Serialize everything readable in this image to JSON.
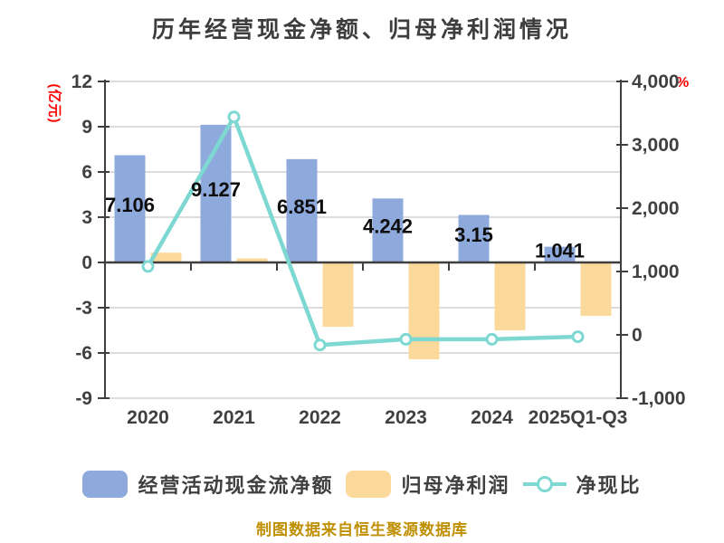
{
  "title": "历年经营现金净额、归母净利润情况",
  "footer": {
    "text": "制图数据来自恒生聚源数据库"
  },
  "legend": {
    "items": [
      {
        "label": "经营活动现金流净额",
        "type": "bar",
        "color": "#8ea9db"
      },
      {
        "label": "归母净利润",
        "type": "bar",
        "color": "#fbd99b"
      },
      {
        "label": "净现比",
        "type": "line",
        "color": "#7ed8d2"
      }
    ]
  },
  "chart_data": {
    "type": "combo-bar-line",
    "title": "历年经营现金净额、归母净利润情况",
    "categories": [
      "2020",
      "2021",
      "2022",
      "2023",
      "2024",
      "2025Q1-Q3"
    ],
    "series": [
      {
        "name": "经营活动现金流净额",
        "type": "bar",
        "axis": "left",
        "unit": "亿元",
        "color": "#8ea9db",
        "values": [
          7.106,
          9.127,
          6.851,
          4.242,
          3.15,
          1.041
        ],
        "data_labels": [
          "7.106",
          "9.127",
          "6.851",
          "4.242",
          "3.15",
          "1.041"
        ]
      },
      {
        "name": "归母净利润",
        "type": "bar",
        "axis": "left",
        "unit": "亿元",
        "color": "#fbd99b",
        "values": [
          0.65,
          0.27,
          -4.26,
          -6.42,
          -4.5,
          -3.54
        ],
        "values_estimated_from_pixels": true
      },
      {
        "name": "净现比",
        "type": "line",
        "axis": "right",
        "unit": "%",
        "color": "#7ed8d2",
        "marker": "circle-white-fill",
        "values": [
          1080,
          3440,
          -160,
          -70,
          -70,
          -30
        ],
        "values_estimated_from_pixels": true
      }
    ],
    "left_axis": {
      "unit_label": "(亿元)",
      "min": -9,
      "max": 12,
      "tick_step": 3,
      "ticks": [
        "12",
        "9",
        "6",
        "3",
        "0",
        "-3",
        "-6",
        "-9"
      ]
    },
    "right_axis": {
      "unit_label": "%",
      "min": -1000,
      "max": 4000,
      "tick_step": 1000,
      "ticks": [
        "4,000",
        "3,000",
        "2,000",
        "1,000",
        "0",
        "-1,000"
      ]
    },
    "grid": true,
    "legend_position": "bottom"
  },
  "colors": {
    "background": "#ffffff",
    "grid": "#d2d2d2",
    "axis": "#3f3f3f",
    "tick_text": "#404040",
    "data_label": "#0d0d0d",
    "title": "#3d3d3d",
    "unit_red": "#ff0000",
    "footer": "#bf8f00",
    "bar_blue": "#8ea9db",
    "bar_yellow": "#fbd99b",
    "line_teal": "#7ed8d2"
  }
}
